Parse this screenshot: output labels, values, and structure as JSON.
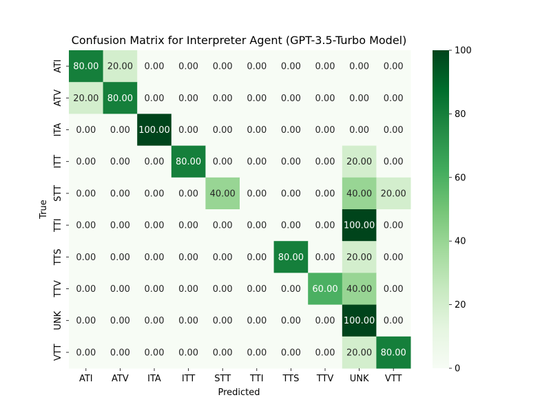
{
  "chart_data": {
    "type": "heatmap",
    "title": "Confusion Matrix for Interpreter Agent (GPT-3.5-Turbo Model)",
    "xlabel": "Predicted",
    "ylabel": "True",
    "x_categories": [
      "ATI",
      "ATV",
      "ITA",
      "ITT",
      "STT",
      "TTI",
      "TTS",
      "TTV",
      "UNK",
      "VTT"
    ],
    "y_categories": [
      "ATI",
      "ATV",
      "ITA",
      "ITT",
      "STT",
      "TTI",
      "TTS",
      "TTV",
      "UNK",
      "VTT"
    ],
    "values": [
      [
        80,
        20,
        0,
        0,
        0,
        0,
        0,
        0,
        0,
        0
      ],
      [
        20,
        80,
        0,
        0,
        0,
        0,
        0,
        0,
        0,
        0
      ],
      [
        0,
        0,
        100,
        0,
        0,
        0,
        0,
        0,
        0,
        0
      ],
      [
        0,
        0,
        0,
        80,
        0,
        0,
        0,
        0,
        20,
        0
      ],
      [
        0,
        0,
        0,
        0,
        40,
        0,
        0,
        0,
        40,
        20
      ],
      [
        0,
        0,
        0,
        0,
        0,
        0,
        0,
        0,
        100,
        0
      ],
      [
        0,
        0,
        0,
        0,
        0,
        0,
        80,
        0,
        20,
        0
      ],
      [
        0,
        0,
        0,
        0,
        0,
        0,
        0,
        60,
        40,
        0
      ],
      [
        0,
        0,
        0,
        0,
        0,
        0,
        0,
        0,
        100,
        0
      ],
      [
        0,
        0,
        0,
        0,
        0,
        0,
        0,
        0,
        20,
        80
      ]
    ],
    "value_format_decimals": 2,
    "colormap": "Greens",
    "colormap_stops": [
      "#f7fcf5",
      "#e5f5e0",
      "#c7e9c0",
      "#a1d99b",
      "#74c476",
      "#41ab5d",
      "#238b45",
      "#006d2c",
      "#00441b"
    ],
    "colorbar_range": [
      0,
      100
    ],
    "colorbar_ticks": [
      0,
      20,
      40,
      60,
      80,
      100
    ]
  }
}
